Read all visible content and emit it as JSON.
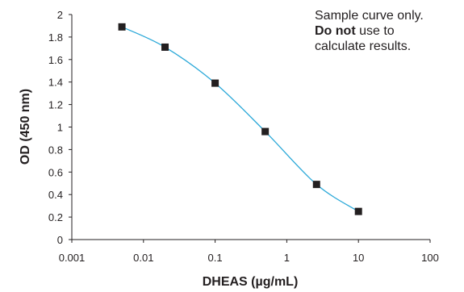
{
  "chart_data": {
    "type": "line",
    "xscale": "log",
    "xlabel": "DHEAS (µg/mL)",
    "ylabel": "OD (450 nm)",
    "xlim": [
      0.001,
      100
    ],
    "ylim": [
      0,
      2
    ],
    "x_ticks": [
      "0.001",
      "0.01",
      "0.1",
      "1",
      "10",
      "100"
    ],
    "x_tick_values": [
      0.001,
      0.01,
      0.1,
      1,
      10,
      100
    ],
    "y_ticks": [
      "0",
      "0.2",
      "0.4",
      "0.6",
      "0.8",
      "1",
      "1.2",
      "1.4",
      "1.6",
      "1.8",
      "2"
    ],
    "y_tick_values": [
      0,
      0.2,
      0.4,
      0.6,
      0.8,
      1,
      1.2,
      1.4,
      1.6,
      1.8,
      2
    ],
    "grid": false,
    "series": [
      {
        "x": [
          0.005,
          0.02,
          0.1,
          0.5,
          2.6,
          10
        ],
        "y": [
          1.89,
          1.71,
          1.39,
          0.96,
          0.49,
          0.25
        ]
      }
    ],
    "colors": {
      "line": "#2aa8d8",
      "marker": "#231f20",
      "axis": "#231f20"
    }
  },
  "annotation": {
    "line1": "Sample curve only.",
    "line2_bold": "Do not",
    "line2_rest": " use to",
    "line3": "calculate results."
  }
}
